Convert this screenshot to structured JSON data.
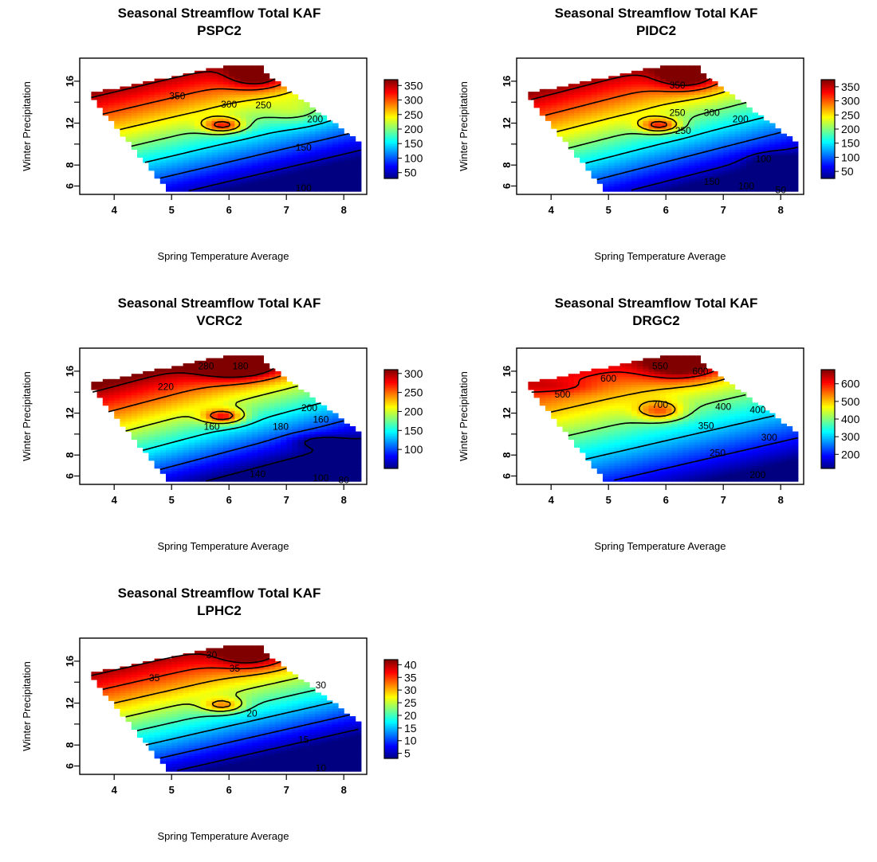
{
  "chart_data": [
    {
      "type": "heatmap",
      "title": "Seasonal Streamflow Total KAF",
      "subtitle": "PSPC2",
      "xlabel": "Spring Temperature Average",
      "ylabel": "Winter Precipitation",
      "xticks": [
        4,
        5,
        6,
        7,
        8
      ],
      "yticks": [
        6,
        8,
        12,
        16
      ],
      "xlim": [
        3.4,
        8.4
      ],
      "ylim": [
        5.2,
        18.2
      ],
      "color_range": [
        30,
        370
      ],
      "colorbar_ticks": [
        50,
        100,
        150,
        200,
        250,
        300,
        350
      ],
      "contour_labels": [
        {
          "text": "350",
          "x": 5.1,
          "y": 14.6
        },
        {
          "text": "300",
          "x": 6.0,
          "y": 13.8
        },
        {
          "text": "250",
          "x": 6.6,
          "y": 13.7
        },
        {
          "text": "200",
          "x": 7.5,
          "y": 12.4
        },
        {
          "text": "150",
          "x": 7.3,
          "y": 9.7
        },
        {
          "text": "100",
          "x": 7.3,
          "y": 5.8
        }
      ],
      "field": {
        "base": 200,
        "gy": 27,
        "ty": 12,
        "gx": -35,
        "tx": 6.0,
        "bumps": [
          [
            6.5,
            16.6,
            0.5,
            1.3,
            100
          ],
          [
            5.9,
            11.8,
            0.35,
            0.7,
            120
          ],
          [
            7.2,
            13.0,
            0.5,
            1.2,
            30
          ]
        ]
      }
    },
    {
      "type": "heatmap",
      "title": "Seasonal Streamflow Total KAF",
      "subtitle": "PIDC2",
      "xlabel": "Spring Temperature Average",
      "ylabel": "Winter Precipitation",
      "xticks": [
        4,
        5,
        6,
        7,
        8
      ],
      "yticks": [
        6,
        8,
        12,
        16
      ],
      "xlim": [
        3.4,
        8.4
      ],
      "ylim": [
        5.2,
        18.2
      ],
      "color_range": [
        25,
        375
      ],
      "colorbar_ticks": [
        50,
        100,
        150,
        200,
        250,
        300,
        350
      ],
      "contour_labels": [
        {
          "text": "350",
          "x": 6.2,
          "y": 15.6
        },
        {
          "text": "250",
          "x": 6.2,
          "y": 13.0
        },
        {
          "text": "300",
          "x": 6.8,
          "y": 13.0
        },
        {
          "text": "200",
          "x": 7.3,
          "y": 12.4
        },
        {
          "text": "250",
          "x": 6.3,
          "y": 11.3
        },
        {
          "text": "100",
          "x": 7.7,
          "y": 8.6
        },
        {
          "text": "150",
          "x": 6.8,
          "y": 6.4
        },
        {
          "text": "100",
          "x": 7.4,
          "y": 6.0
        },
        {
          "text": "50",
          "x": 8.0,
          "y": 5.6
        }
      ],
      "field": {
        "base": 200,
        "gy": 27,
        "ty": 12,
        "gx": -38,
        "tx": 6.0,
        "bumps": [
          [
            6.4,
            16.6,
            0.55,
            1.4,
            110
          ],
          [
            5.9,
            11.8,
            0.35,
            0.7,
            120
          ],
          [
            7.8,
            8.4,
            0.4,
            0.8,
            -30
          ]
        ]
      }
    },
    {
      "type": "heatmap",
      "title": "Seasonal Streamflow Total KAF",
      "subtitle": "VCRC2",
      "xlabel": "Spring Temperature Average",
      "ylabel": "Winter Precipitation",
      "xticks": [
        4,
        5,
        6,
        7,
        8
      ],
      "yticks": [
        6,
        8,
        12,
        16
      ],
      "xlim": [
        3.4,
        8.4
      ],
      "ylim": [
        5.2,
        18.2
      ],
      "color_range": [
        50,
        310
      ],
      "colorbar_ticks": [
        100,
        150,
        200,
        250,
        300
      ],
      "contour_labels": [
        {
          "text": "280",
          "x": 5.6,
          "y": 16.5
        },
        {
          "text": "180",
          "x": 6.2,
          "y": 16.5
        },
        {
          "text": "220",
          "x": 4.9,
          "y": 14.5
        },
        {
          "text": "200",
          "x": 7.4,
          "y": 12.5
        },
        {
          "text": "160",
          "x": 7.6,
          "y": 11.4
        },
        {
          "text": "180",
          "x": 6.9,
          "y": 10.7
        },
        {
          "text": "160",
          "x": 5.7,
          "y": 10.7
        },
        {
          "text": "140",
          "x": 6.5,
          "y": 6.2
        },
        {
          "text": "100",
          "x": 7.6,
          "y": 5.8
        },
        {
          "text": "80",
          "x": 8.0,
          "y": 5.6
        }
      ],
      "field": {
        "base": 180,
        "gy": 22,
        "ty": 12,
        "gx": -32,
        "tx": 6.0,
        "bumps": [
          [
            6.2,
            16.6,
            0.7,
            1.3,
            110
          ],
          [
            5.9,
            11.7,
            0.35,
            0.7,
            100
          ],
          [
            7.6,
            9.3,
            0.45,
            0.6,
            -40
          ]
        ]
      }
    },
    {
      "type": "heatmap",
      "title": "Seasonal Streamflow Total KAF",
      "subtitle": "DRGC2",
      "xlabel": "Spring Temperature Average",
      "ylabel": "Winter Precipitation",
      "xticks": [
        4,
        5,
        6,
        7,
        8
      ],
      "yticks": [
        6,
        8,
        12,
        16
      ],
      "xlim": [
        3.4,
        8.4
      ],
      "ylim": [
        5.2,
        18.2
      ],
      "color_range": [
        120,
        680
      ],
      "colorbar_ticks": [
        200,
        300,
        400,
        500,
        600
      ],
      "contour_labels": [
        {
          "text": "550",
          "x": 5.9,
          "y": 16.5
        },
        {
          "text": "600",
          "x": 6.6,
          "y": 16.0
        },
        {
          "text": "600",
          "x": 5.0,
          "y": 15.3
        },
        {
          "text": "500",
          "x": 4.2,
          "y": 13.8
        },
        {
          "text": "700",
          "x": 5.9,
          "y": 12.8
        },
        {
          "text": "400",
          "x": 7.0,
          "y": 12.6
        },
        {
          "text": "400",
          "x": 7.6,
          "y": 12.3
        },
        {
          "text": "350",
          "x": 6.7,
          "y": 10.8
        },
        {
          "text": "300",
          "x": 7.8,
          "y": 9.7
        },
        {
          "text": "250",
          "x": 6.9,
          "y": 8.2
        },
        {
          "text": "200",
          "x": 7.6,
          "y": 6.1
        }
      ],
      "field": {
        "base": 400,
        "gy": 38,
        "ty": 12,
        "gx": -48,
        "tx": 6.0,
        "bumps": [
          [
            6.3,
            16.6,
            0.7,
            1.4,
            190
          ],
          [
            5.9,
            12.2,
            0.4,
            0.9,
            150
          ],
          [
            4.1,
            14.5,
            0.6,
            0.6,
            40
          ]
        ]
      }
    },
    {
      "type": "heatmap",
      "title": "Seasonal Streamflow Total KAF",
      "subtitle": "LPHC2",
      "xlabel": "Spring Temperature Average",
      "ylabel": "Winter Precipitation",
      "xticks": [
        4,
        5,
        6,
        7,
        8
      ],
      "yticks": [
        6,
        8,
        12,
        16
      ],
      "xlim": [
        3.4,
        8.4
      ],
      "ylim": [
        5.2,
        18.2
      ],
      "color_range": [
        3,
        42
      ],
      "colorbar_ticks": [
        5,
        10,
        15,
        20,
        25,
        30,
        35,
        40
      ],
      "contour_labels": [
        {
          "text": "30",
          "x": 5.7,
          "y": 16.6
        },
        {
          "text": "35",
          "x": 6.1,
          "y": 15.3
        },
        {
          "text": "35",
          "x": 4.7,
          "y": 14.4
        },
        {
          "text": "30",
          "x": 7.6,
          "y": 13.7
        },
        {
          "text": "20",
          "x": 6.4,
          "y": 11.0
        },
        {
          "text": "15",
          "x": 7.3,
          "y": 8.5
        },
        {
          "text": "10",
          "x": 7.6,
          "y": 5.8
        }
      ],
      "field": {
        "base": 22,
        "gy": 3.2,
        "ty": 12,
        "gx": -4,
        "tx": 6.0,
        "bumps": [
          [
            6.4,
            16.6,
            0.6,
            1.3,
            10
          ],
          [
            5.9,
            11.8,
            0.35,
            0.7,
            10
          ]
        ]
      }
    }
  ]
}
